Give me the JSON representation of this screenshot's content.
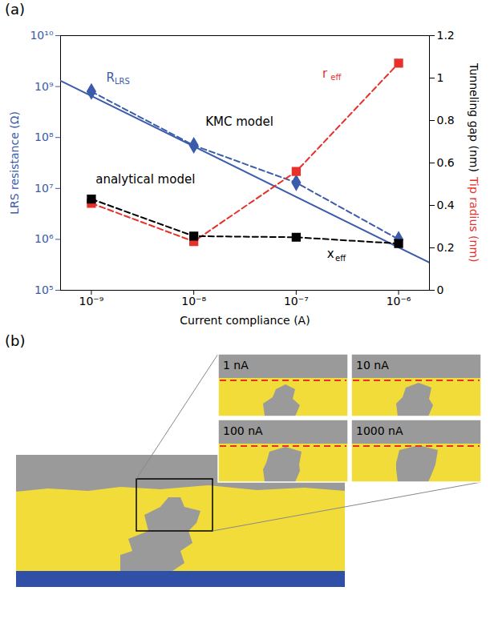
{
  "chart_data": {
    "type": "line",
    "panel_label": "(a)",
    "x_label": "Current compliance (A)",
    "y_label": "LRS resistance (Ω)",
    "y2_label": [
      {
        "text": "Tunneling gap (nm)",
        "color": "#000000"
      },
      {
        "text": "Tip radius (nm)",
        "color": "#e8302a"
      }
    ],
    "log": "y",
    "x_log": true,
    "xlim": [
      5e-10,
      2e-06
    ],
    "xticks": [
      {
        "value": 1e-09,
        "label": "10⁻⁹"
      },
      {
        "value": 1e-08,
        "label": "10⁻⁸"
      },
      {
        "value": 1e-07,
        "label": "10⁻⁷"
      },
      {
        "value": 1e-06,
        "label": "10⁻⁶"
      }
    ],
    "ylim": [
      100000.0,
      10000000000.0
    ],
    "yticks": [
      {
        "value": 100000.0,
        "label": "10⁵"
      },
      {
        "value": 1000000.0,
        "label": "10⁶"
      },
      {
        "value": 10000000.0,
        "label": "10⁷"
      },
      {
        "value": 100000000.0,
        "label": "10⁸"
      },
      {
        "value": 1000000000.0,
        "label": "10⁹"
      },
      {
        "value": 10000000000.0,
        "label": "10¹⁰"
      }
    ],
    "y2lim": [
      0,
      1.2
    ],
    "y2ticks": [
      0,
      0.2,
      0.4,
      0.6,
      0.8,
      1,
      1.2
    ],
    "grid": false,
    "series": [
      {
        "name": "KMC model",
        "axis": "y",
        "color": "#3b5bab",
        "marker": "diamond",
        "line_style": "dashed",
        "x": [
          1e-09,
          1e-08,
          1e-07,
          1e-06
        ],
        "values": [
          800000000.0,
          70000000.0,
          13000000.0,
          1000000.0
        ]
      },
      {
        "name": "analytical model",
        "axis": "y",
        "color": "#3b5bab",
        "marker": "none",
        "line_style": "solid",
        "x": [
          5e-10,
          2e-06
        ],
        "values": [
          1300000000.0,
          350000.0
        ]
      },
      {
        "name": "reff",
        "axis": "y2",
        "color": "#e8302a",
        "marker": "square",
        "line_style": "dashed",
        "x": [
          1e-09,
          1e-08,
          1e-07,
          1e-06
        ],
        "values": [
          0.41,
          0.23,
          0.56,
          1.07
        ]
      },
      {
        "name": "xeff",
        "axis": "y2",
        "color": "#000000",
        "marker": "square",
        "line_style": "dashed",
        "x": [
          1e-09,
          1e-08,
          1e-07,
          1e-06
        ],
        "values": [
          0.43,
          0.255,
          0.25,
          0.22
        ]
      }
    ],
    "annotations": [
      {
        "text": "R",
        "subscript": "LRS",
        "x": 1.4e-09,
        "y": 1500000000.0,
        "axis": "y",
        "color": "#3b5bab"
      },
      {
        "text": "KMC model",
        "x": 1.3e-08,
        "y": 200000000.0,
        "axis": "y",
        "color": "#000000"
      },
      {
        "text": "analytical model",
        "x": 1.1e-09,
        "y": 15000000.0,
        "axis": "y",
        "color": "#000000"
      },
      {
        "text": "r",
        "subscript": "eff",
        "x": 1.8e-07,
        "y": 1.02,
        "axis": "y2",
        "color": "#e8302a"
      },
      {
        "text": "x",
        "subscript": "eff",
        "x": 2e-07,
        "y": 0.17,
        "axis": "y2",
        "color": "#000000"
      }
    ]
  },
  "simulation_panel": {
    "panel_label": "(b)",
    "snapshot_labels": [
      "1 nA",
      "10 nA",
      "100 nA",
      "1000 nA"
    ]
  }
}
